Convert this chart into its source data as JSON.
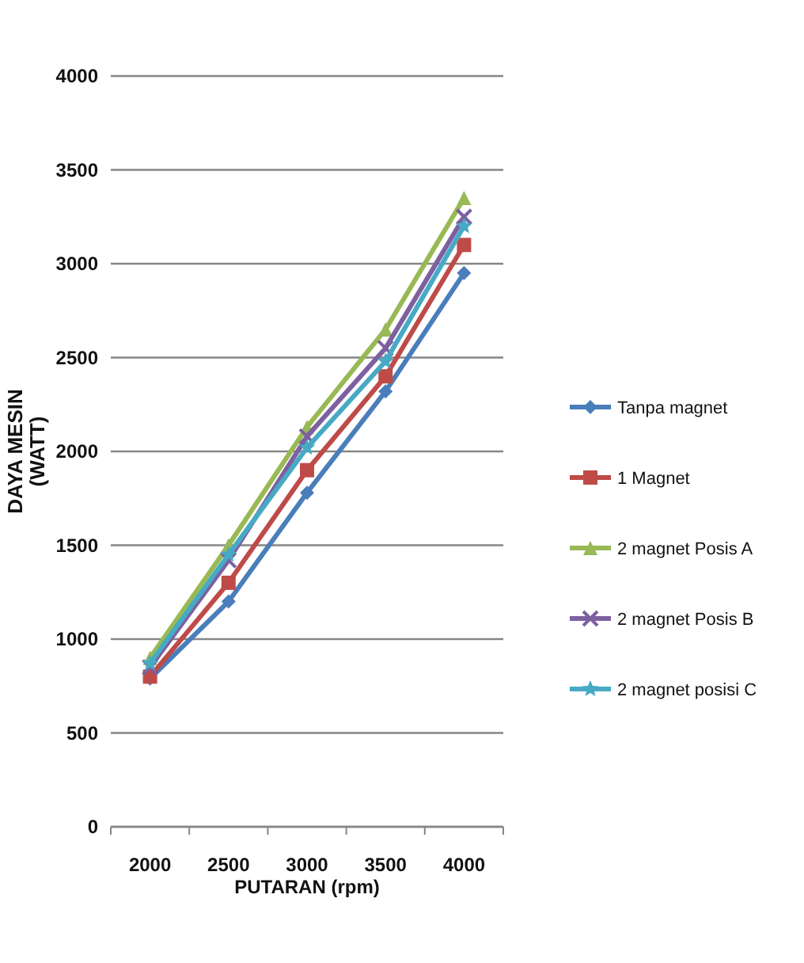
{
  "chart_data": {
    "type": "line",
    "xlabel": "PUTARAN (rpm)",
    "ylabel": "DAYA MESIN (WATT)",
    "categories": [
      "2000",
      "2500",
      "3000",
      "3500",
      "4000"
    ],
    "series": [
      {
        "name": "Tanpa magnet",
        "color": "#4a7ebb",
        "marker": "diamond",
        "values": [
          790,
          1200,
          1780,
          2320,
          2950
        ]
      },
      {
        "name": "1 Magnet",
        "color": "#be4b48",
        "marker": "square",
        "values": [
          800,
          1300,
          1900,
          2400,
          3100
        ]
      },
      {
        "name": "2 magnet Posis A",
        "color": "#98b954",
        "marker": "triangle",
        "values": [
          900,
          1500,
          2130,
          2650,
          3350
        ]
      },
      {
        "name": "2 magnet Posis B",
        "color": "#7d60a0",
        "marker": "cross",
        "values": [
          850,
          1420,
          2080,
          2550,
          3250
        ]
      },
      {
        "name": "2 magnet posisi C",
        "color": "#46aac5",
        "marker": "star",
        "values": [
          870,
          1450,
          2020,
          2480,
          3200
        ]
      }
    ],
    "ylim": [
      0,
      4000
    ],
    "yticks": [
      0,
      500,
      1000,
      1500,
      2000,
      2500,
      3000,
      3500,
      4000
    ],
    "grid": "y",
    "legend": "right"
  }
}
